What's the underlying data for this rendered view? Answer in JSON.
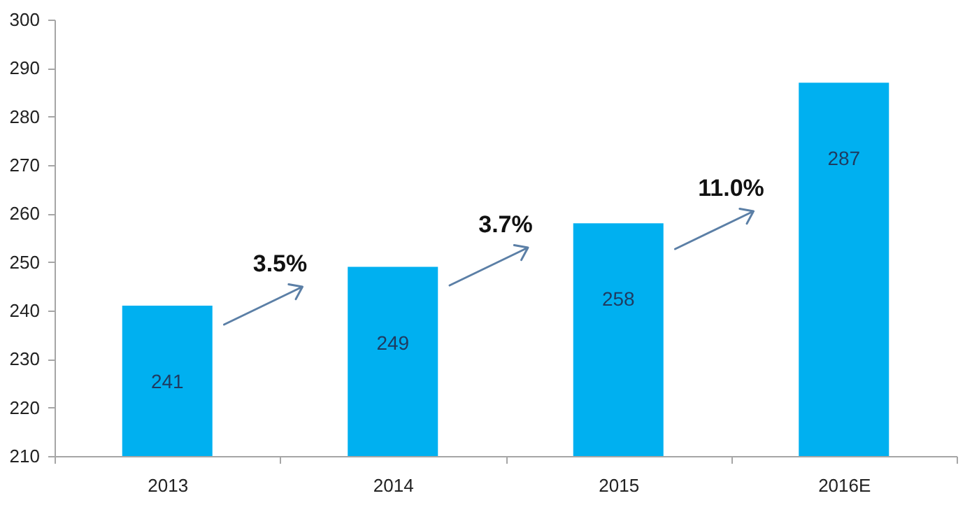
{
  "chart_data": {
    "type": "bar",
    "categories": [
      "2013",
      "2014",
      "2015",
      "2016E"
    ],
    "values": [
      241,
      249,
      258,
      287
    ],
    "color": "#00b0f0",
    "data_labels": true,
    "ylim": [
      210,
      300
    ],
    "yticks": [
      210,
      220,
      230,
      240,
      250,
      260,
      270,
      280,
      290,
      300
    ],
    "grid": false,
    "annotations": [
      "3.5%",
      "3.7%",
      "11.0%"
    ]
  }
}
